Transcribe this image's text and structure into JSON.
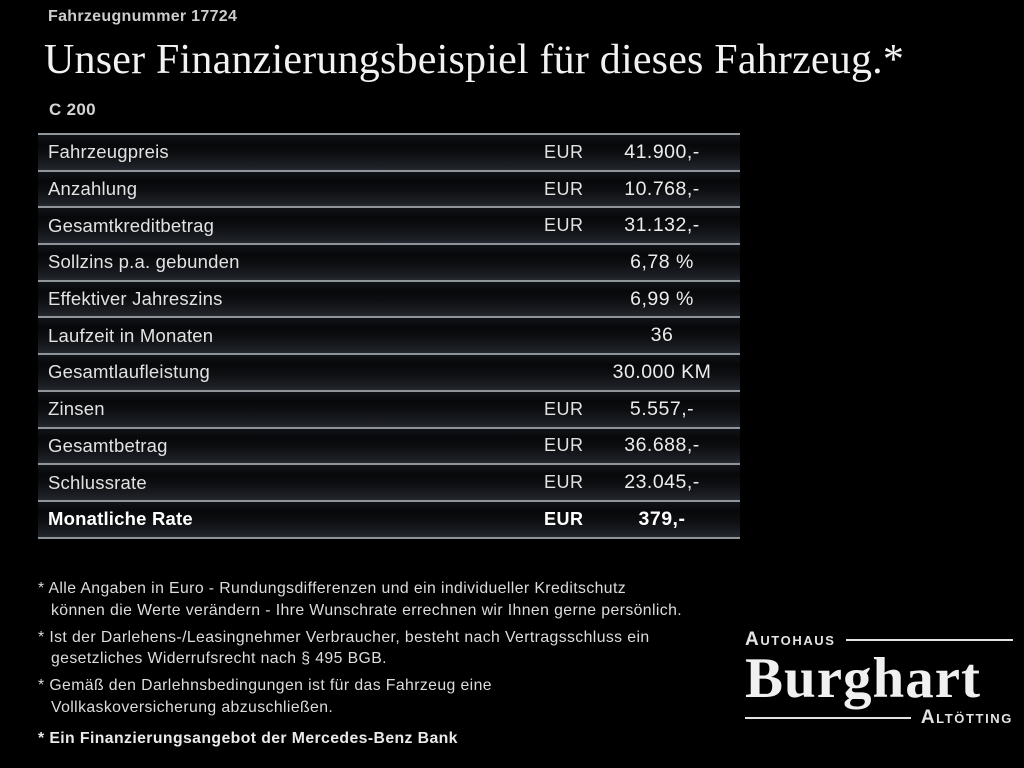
{
  "colors": {
    "background": "#000000",
    "text": "#e4e4e4",
    "rule": "#90959a",
    "logo": "#e3e3e3"
  },
  "header": {
    "vehicle_number": "Fahrzeugnummer 17724",
    "title": "Unser Finanzierungsbeispiel für dieses Fahrzeug.*",
    "model": "C 200"
  },
  "table": {
    "rows": [
      {
        "label": "Fahrzeugpreis",
        "currency": "EUR",
        "value": "41.900,-",
        "bold": false
      },
      {
        "label": "Anzahlung",
        "currency": "EUR",
        "value": "10.768,-",
        "bold": false
      },
      {
        "label": "Gesamtkreditbetrag",
        "currency": "EUR",
        "value": "31.132,-",
        "bold": false
      },
      {
        "label": "Sollzins p.a. gebunden",
        "currency": "",
        "value": "6,78 %",
        "bold": false
      },
      {
        "label": "Effektiver Jahreszins",
        "currency": "",
        "value": "6,99 %",
        "bold": false
      },
      {
        "label": "Laufzeit in Monaten",
        "currency": "",
        "value": "36",
        "bold": false
      },
      {
        "label": "Gesamtlaufleistung",
        "currency": "",
        "value": "30.000 KM",
        "bold": false
      },
      {
        "label": "Zinsen",
        "currency": "EUR",
        "value": "5.557,-",
        "bold": false
      },
      {
        "label": "Gesamtbetrag",
        "currency": "EUR",
        "value": "36.688,-",
        "bold": false
      },
      {
        "label": "Schlussrate",
        "currency": "EUR",
        "value": "23.045,-",
        "bold": false
      },
      {
        "label": "Monatliche Rate",
        "currency": "EUR",
        "value": "379,-",
        "bold": true
      }
    ]
  },
  "footnotes": {
    "items": [
      "* Alle Angaben in Euro - Rundungsdifferenzen und ein individueller Kreditschutz\nkönnen die Werte verändern - Ihre Wunschrate errechnen wir Ihnen gerne persönlich.",
      "* Ist der Darlehens-/Leasingnehmer Verbraucher, besteht nach Vertragsschluss ein\ngesetzliches Widerrufsrecht nach § 495 BGB.",
      "* Gemäß den Darlehnsbedingungen ist für das Fahrzeug eine\nVollkaskoversicherung abzuschließen."
    ],
    "bank_note": "* Ein Finanzierungsangebot der Mercedes-Benz Bank"
  },
  "dealer_logo": {
    "top": "Autohaus",
    "name": "Burghart",
    "bottom": "Altötting"
  }
}
